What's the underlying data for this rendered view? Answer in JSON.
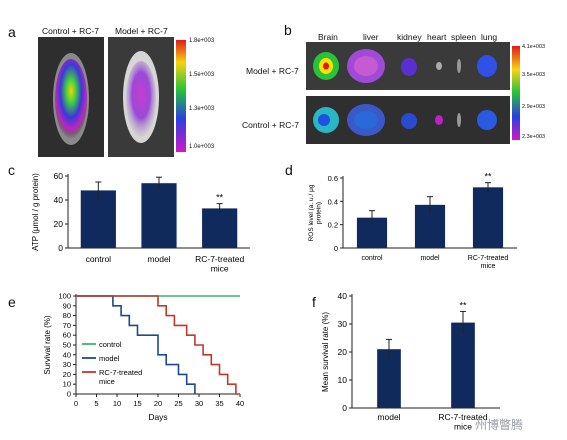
{
  "panels": {
    "a": {
      "letter": "a",
      "labels": [
        "Control + RC-7",
        "Model + RC-7"
      ],
      "colorbar_ticks": [
        "1.8e+003",
        "1.5e+003",
        "1.3e+003",
        "1.0e+003"
      ]
    },
    "b": {
      "letter": "b",
      "organs": [
        "Brain",
        "liver",
        "kidney",
        "heart",
        "spleen",
        "lung"
      ],
      "rows": [
        "Model + RC-7",
        "Control + RC-7"
      ],
      "colorbar_ticks": [
        "4.1e+003",
        "3.5e+003",
        "2.9e+003",
        "2.3e+003"
      ]
    },
    "c": {
      "letter": "c",
      "significance": "**"
    },
    "d": {
      "letter": "d",
      "significance": "**"
    },
    "e": {
      "letter": "e"
    },
    "f": {
      "letter": "f",
      "significance": "**"
    }
  },
  "watermark": "州博瞥腾",
  "chart_data": [
    {
      "id": "c",
      "type": "bar",
      "categories": [
        "control",
        "model",
        "RC-7-treated mice"
      ],
      "values": [
        48,
        54,
        33
      ],
      "errors": [
        7,
        5,
        4
      ],
      "ylabel": "ATP (μmol / g protein)",
      "ylim": [
        0,
        60
      ],
      "yticks": [
        0,
        20,
        40,
        60
      ],
      "bar_color": "#102a5e"
    },
    {
      "id": "d",
      "type": "bar",
      "categories": [
        "control",
        "model",
        "RC-7-treated mice"
      ],
      "values": [
        0.26,
        0.37,
        0.52
      ],
      "errors": [
        0.06,
        0.07,
        0.04
      ],
      "ylabel": "ROS level (a. u./ μg protein)",
      "ylim": [
        0,
        0.6
      ],
      "yticks": [
        0,
        0.2,
        0.4,
        0.6
      ],
      "bar_color": "#102a5e"
    },
    {
      "id": "e",
      "type": "line",
      "xlabel": "Days",
      "ylabel": "Survival rate (%)",
      "xlim": [
        0,
        40
      ],
      "ylim": [
        0,
        100
      ],
      "xticks": [
        0,
        5,
        10,
        15,
        20,
        25,
        30,
        35,
        40
      ],
      "yticks": [
        0,
        10,
        20,
        30,
        40,
        50,
        60,
        70,
        80,
        90,
        100
      ],
      "legend": [
        "control",
        "model",
        "RC-7-treated mice"
      ],
      "series": [
        {
          "name": "control",
          "color": "#3cb371",
          "x": [
            0,
            40
          ],
          "y": [
            100,
            100
          ]
        },
        {
          "name": "model",
          "color": "#1d4a8a",
          "x": [
            0,
            9,
            9,
            11,
            11,
            13,
            13,
            15,
            15,
            20,
            20,
            22,
            22,
            25,
            25,
            27,
            27,
            29,
            29
          ],
          "y": [
            100,
            100,
            90,
            90,
            80,
            80,
            70,
            70,
            60,
            60,
            40,
            40,
            30,
            30,
            20,
            20,
            10,
            10,
            0
          ]
        },
        {
          "name": "RC-7-treated mice",
          "color": "#c0392b",
          "x": [
            0,
            20,
            20,
            22,
            22,
            24,
            24,
            27,
            27,
            29,
            29,
            31,
            31,
            33,
            33,
            35,
            35,
            37,
            37,
            39,
            39,
            40
          ],
          "y": [
            100,
            100,
            90,
            90,
            80,
            80,
            70,
            70,
            60,
            60,
            50,
            50,
            40,
            40,
            30,
            30,
            20,
            20,
            10,
            10,
            0,
            0
          ]
        }
      ]
    },
    {
      "id": "f",
      "type": "bar",
      "categories": [
        "model",
        "RC-7-treated mice"
      ],
      "values": [
        21,
        30.5
      ],
      "errors": [
        3.5,
        4
      ],
      "ylabel": "Mean survival rate (%)",
      "ylim": [
        0,
        40
      ],
      "yticks": [
        0,
        10,
        20,
        30,
        40
      ],
      "bar_color": "#102a5e"
    }
  ]
}
